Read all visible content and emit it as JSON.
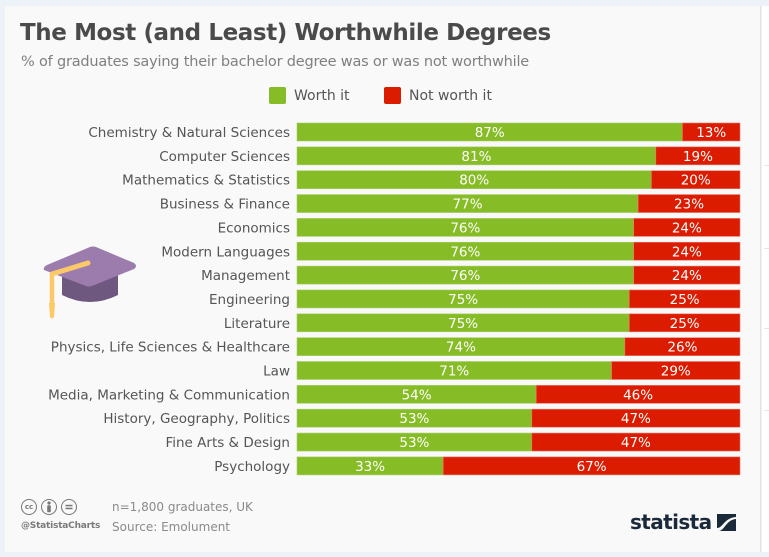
{
  "header": {
    "title": "The Most (and Least) Worthwhile Degrees",
    "subtitle": "% of graduates saying their bachelor degree was or was not worthwhile"
  },
  "legend": [
    {
      "label": "Worth it",
      "color": "#86bc25"
    },
    {
      "label": "Not worth it",
      "color": "#db1c00"
    }
  ],
  "chart_data": {
    "type": "bar",
    "orientation": "horizontal",
    "stacked": true,
    "title": "The Most (and Least) Worthwhile Degrees",
    "subtitle": "% of graduates saying their bachelor degree was or was not worthwhile",
    "xlabel": "",
    "ylabel": "",
    "xlim": [
      0,
      100
    ],
    "grid": false,
    "legend_position": "top",
    "categories": [
      "Chemistry & Natural Sciences",
      "Computer Sciences",
      "Mathematics & Statistics",
      "Business & Finance",
      "Economics",
      "Modern Languages",
      "Management",
      "Engineering",
      "Literature",
      "Physics, Life Sciences & Healthcare",
      "Law",
      "Media, Marketing & Communication",
      "History, Geography, Politics",
      "Fine Arts & Design",
      "Psychology"
    ],
    "series": [
      {
        "name": "Worth it",
        "color": "#86bc25",
        "values": [
          87,
          81,
          80,
          77,
          76,
          76,
          76,
          75,
          75,
          74,
          71,
          54,
          53,
          53,
          33
        ],
        "labels": [
          "87%",
          "81%",
          "80%",
          "77%",
          "76%",
          "76%",
          "76%",
          "75%",
          "75%",
          "74%",
          "71%",
          "54%",
          "53%",
          "53%",
          "33%"
        ]
      },
      {
        "name": "Not worth it",
        "color": "#db1c00",
        "values": [
          13,
          19,
          20,
          23,
          24,
          24,
          24,
          25,
          25,
          26,
          29,
          46,
          47,
          47,
          67
        ],
        "labels": [
          "13%",
          "19%",
          "20%",
          "23%",
          "24%",
          "24%",
          "24%",
          "25%",
          "25%",
          "26%",
          "29%",
          "46%",
          "47%",
          "47%",
          "67%"
        ]
      }
    ]
  },
  "footer": {
    "note": "n=1,800 graduates, UK",
    "source": "Source: Emolument",
    "handle": "@StatistaCharts",
    "license_icons": [
      "cc-icon",
      "attribution-icon",
      "no-derivatives-icon"
    ],
    "brand": "statista"
  },
  "illustration": {
    "icon": "graduation-cap-icon",
    "cap_color": "#9b7cac",
    "cap_shadow_color": "#6e5880",
    "tassel_color": "#fcc96a"
  }
}
